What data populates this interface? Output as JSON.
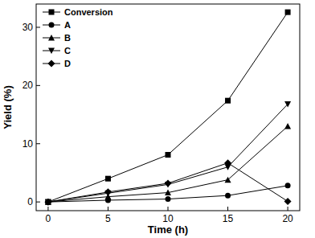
{
  "chart_data": {
    "type": "line",
    "x_label": "Time (h)",
    "y_label": "Yield (%)",
    "x": [
      0,
      5,
      10,
      15,
      20
    ],
    "xlim": [
      -1,
      21
    ],
    "xticks": [
      0,
      5,
      10,
      15,
      20
    ],
    "ylim": [
      -1.5,
      34
    ],
    "yticks": [
      0,
      10,
      20,
      30
    ],
    "legend": "top-left",
    "grid": false,
    "series": [
      {
        "name": "Conversion",
        "color": "#000000",
        "marker": "square",
        "values": [
          0,
          4.0,
          8.1,
          17.4,
          32.6
        ]
      },
      {
        "name": "A",
        "color": "#000000",
        "marker": "circle",
        "values": [
          0,
          0.3,
          0.5,
          1.1,
          2.8
        ]
      },
      {
        "name": "B",
        "color": "#000000",
        "marker": "triangle-up",
        "values": [
          0,
          0.9,
          1.6,
          3.8,
          13.0
        ]
      },
      {
        "name": "C",
        "color": "#000000",
        "marker": "triangle-down",
        "values": [
          0,
          1.5,
          3.0,
          6.0,
          16.8
        ]
      },
      {
        "name": "D",
        "color": "#000000",
        "marker": "diamond",
        "values": [
          0,
          1.7,
          3.2,
          6.7,
          0.1
        ]
      }
    ]
  }
}
